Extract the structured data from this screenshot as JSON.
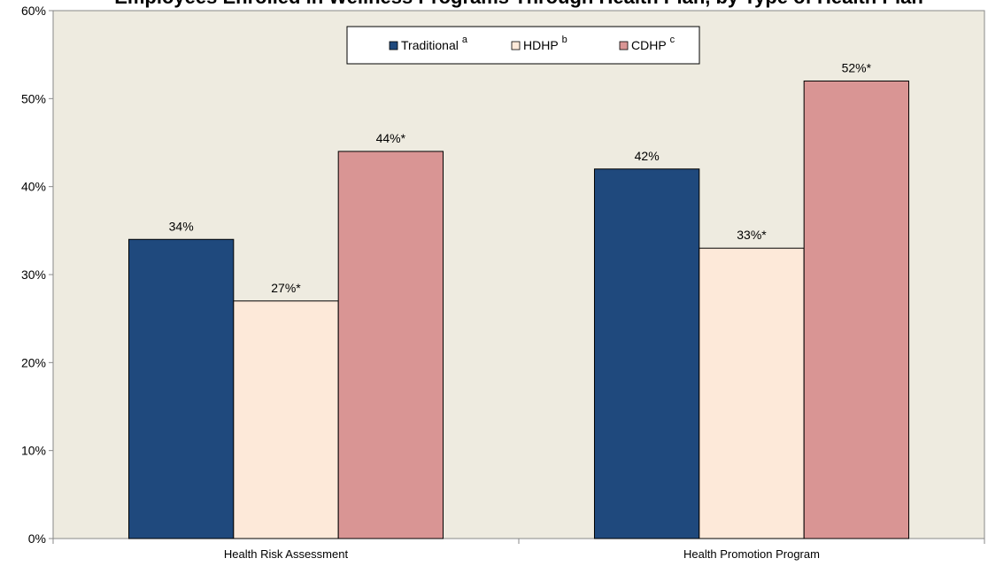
{
  "chart_data": {
    "type": "bar",
    "title": "Employees Enrolled in Wellness Programs Through Health Plan, by Type of Health Plan",
    "categories": [
      "Health Risk Assessment",
      "Health Promotion Program"
    ],
    "series": [
      {
        "name": "Traditional",
        "sup": "a",
        "values": [
          34,
          42
        ],
        "labels": [
          "34%",
          "42%"
        ],
        "color": "#1f497d"
      },
      {
        "name": "HDHP",
        "sup": "b",
        "values": [
          27,
          33
        ],
        "labels": [
          "27%*",
          "33%*"
        ],
        "color": "#fde9d9"
      },
      {
        "name": "CDHP",
        "sup": "c",
        "values": [
          44,
          52
        ],
        "labels": [
          "44%*",
          "52%*"
        ],
        "color": "#d99594"
      }
    ],
    "yticks": [
      "0%",
      "10%",
      "20%",
      "30%",
      "40%",
      "50%",
      "60%"
    ],
    "ylim": [
      0,
      60
    ],
    "xlabel": "",
    "ylabel": "",
    "plot_background": "#eeebe0",
    "gridlines": false,
    "legend_position": "top-center"
  }
}
